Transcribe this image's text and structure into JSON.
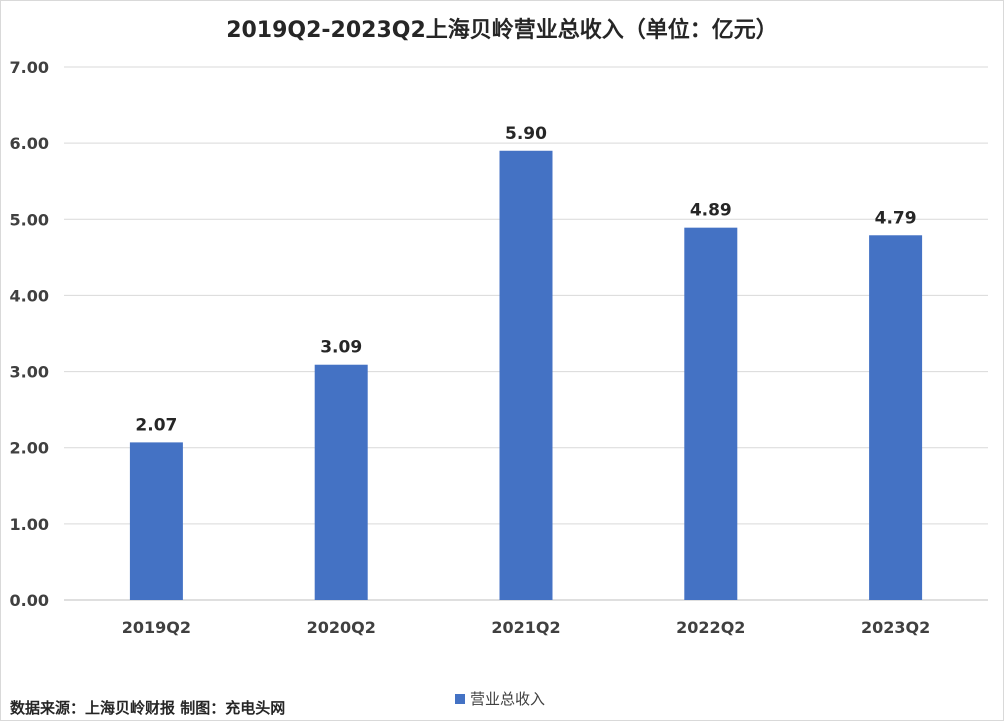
{
  "chart_data": {
    "type": "bar",
    "title": "2019Q2-2023Q2上海贝岭营业总收入（单位：亿元）",
    "categories": [
      "2019Q2",
      "2020Q2",
      "2021Q2",
      "2022Q2",
      "2023Q2"
    ],
    "series": [
      {
        "name": "营业总收入",
        "values": [
          2.07,
          3.09,
          5.9,
          4.89,
          4.79
        ]
      }
    ],
    "data_labels": [
      "2.07",
      "3.09",
      "5.90",
      "4.89",
      "4.79"
    ],
    "yticks": [
      "0.00",
      "1.00",
      "2.00",
      "3.00",
      "4.00",
      "5.00",
      "6.00",
      "7.00"
    ],
    "ylim": [
      0,
      7
    ],
    "grid": true,
    "legend_position": "bottom",
    "bar_color": "#4472c4"
  },
  "footer_text": "数据来源：上海贝岭财报  制图：充电头网"
}
